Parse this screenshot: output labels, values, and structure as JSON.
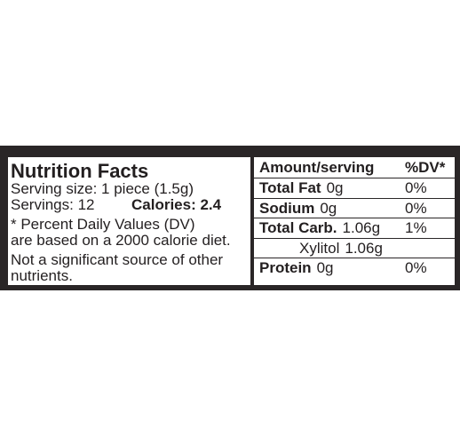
{
  "label": {
    "title": "Nutrition Facts",
    "serving_size": "Serving size: 1 piece (1.5g)",
    "servings": "Servings: 12",
    "calories": "Calories: 2.4",
    "dv_note": [
      "* Percent Daily Values (DV)",
      "are based on a 2000 calorie diet."
    ],
    "other_note": [
      "Not a significant source of other",
      "nutrients."
    ],
    "table": {
      "header": [
        "Amount/serving",
        "%DV*"
      ],
      "rows": [
        {
          "name": "Total Fat",
          "amount": "0g",
          "dv": "0%"
        },
        {
          "name": "Sodium",
          "amount": "0g",
          "dv": "0%"
        },
        {
          "name": "Total Carb.",
          "amount": "1.06g",
          "dv": "1%"
        },
        {
          "name": "Xylitol",
          "amount": "1.06g"
        },
        {
          "name": "Protein",
          "amount": "0g",
          "dv": "0%"
        }
      ]
    }
  }
}
